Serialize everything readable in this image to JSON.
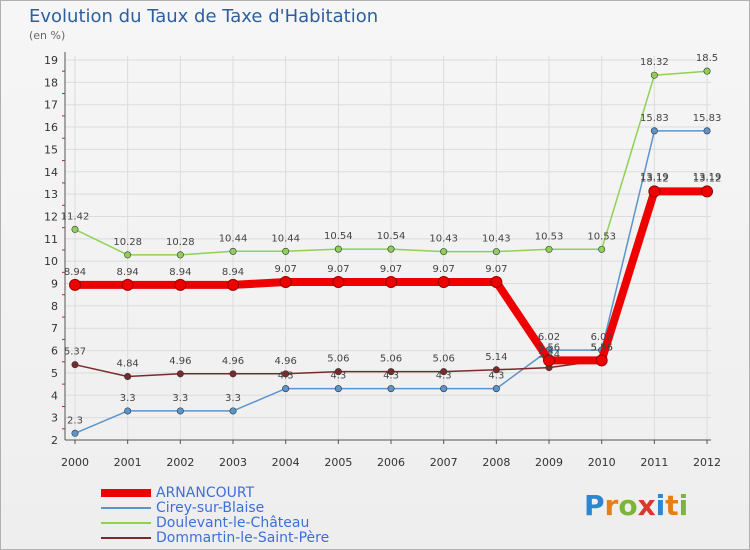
{
  "header": {
    "title": "Evolution du Taux de Taxe d'Habitation",
    "subtitle": "(en %)"
  },
  "brand": {
    "letters": [
      "P",
      "r",
      "o",
      "x",
      "i",
      "t",
      "i"
    ],
    "letter_colors": [
      "#2b86d3",
      "#e2801b",
      "#7fb43a",
      "#d63a2c",
      "#2b86d3",
      "#e2801b",
      "#7fb43a"
    ]
  },
  "chart_data": {
    "type": "line",
    "title": "Evolution du Taux de Taxe d'Habitation",
    "subtitle": "(en %)",
    "xlabel": "",
    "ylabel": "(en %)",
    "x": [
      "2000",
      "2001",
      "2002",
      "2003",
      "2004",
      "2005",
      "2006",
      "2007",
      "2008",
      "2009",
      "2010",
      "2011",
      "2012"
    ],
    "ylim": [
      2,
      19
    ],
    "yticks": [
      "2",
      "3",
      "4",
      "5",
      "6",
      "7",
      "8",
      "9",
      "10",
      "11",
      "12",
      "13",
      "14",
      "15",
      "16",
      "17",
      "18",
      "19"
    ],
    "grid": true,
    "legend_position": "bottom-left",
    "series": [
      {
        "name": "ARNANCOURT",
        "color": "#ee0000",
        "style": "thick",
        "values": [
          8.94,
          8.94,
          8.94,
          8.94,
          9.07,
          9.07,
          9.07,
          9.07,
          9.07,
          5.56,
          5.56,
          13.12,
          13.12
        ],
        "labels": [
          "8.94",
          "8.94",
          "8.94",
          "8.94",
          "9.07",
          "9.07",
          "9.07",
          "9.07",
          "9.07",
          "5.56",
          "5.56",
          "13.12",
          "13.12"
        ]
      },
      {
        "name": "Cirey-sur-Blaise",
        "color": "#5b95cc",
        "style": "thin",
        "values": [
          2.3,
          3.3,
          3.3,
          3.3,
          4.3,
          4.3,
          4.3,
          4.3,
          4.3,
          6.02,
          6.02,
          15.83,
          15.83
        ],
        "labels": [
          "2.3",
          "3.3",
          "3.3",
          "3.3",
          "4.3",
          "4.3",
          "4.3",
          "4.3",
          "4.3",
          "6.02",
          "6.02",
          "15.83",
          "15.83"
        ]
      },
      {
        "name": "Doulevant-le-Château",
        "color": "#8fd155",
        "style": "thin",
        "values": [
          11.42,
          10.28,
          10.28,
          10.44,
          10.44,
          10.54,
          10.54,
          10.43,
          10.43,
          10.53,
          10.53,
          18.32,
          18.5
        ],
        "labels": [
          "11.42",
          "10.28",
          "10.28",
          "10.44",
          "10.44",
          "10.54",
          "10.54",
          "10.43",
          "10.43",
          "10.53",
          "10.53",
          "18.32",
          "18.5"
        ]
      },
      {
        "name": "Dommartin-le-Saint-Père",
        "color": "#7a2a2a",
        "style": "thin",
        "values": [
          5.37,
          4.84,
          4.96,
          4.96,
          4.96,
          5.06,
          5.06,
          5.06,
          5.14,
          5.24,
          5.56,
          13.19,
          13.19
        ],
        "labels": [
          "5.37",
          "4.84",
          "4.96",
          "4.96",
          "4.96",
          "5.06",
          "5.06",
          "5.06",
          "5.14",
          "5.24",
          "5.56",
          "13.19",
          "13.19"
        ]
      }
    ]
  }
}
